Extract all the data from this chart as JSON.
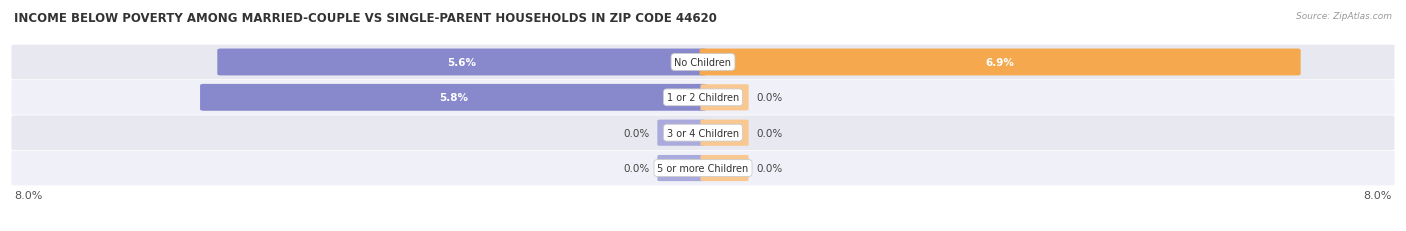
{
  "title": "INCOME BELOW POVERTY AMONG MARRIED-COUPLE VS SINGLE-PARENT HOUSEHOLDS IN ZIP CODE 44620",
  "source": "Source: ZipAtlas.com",
  "categories": [
    "No Children",
    "1 or 2 Children",
    "3 or 4 Children",
    "5 or more Children"
  ],
  "married_values": [
    5.6,
    5.8,
    0.0,
    0.0
  ],
  "single_values": [
    6.9,
    0.0,
    0.0,
    0.0
  ],
  "married_color": "#8888cc",
  "single_color": "#f5a84e",
  "married_stub_color": "#aaaadd",
  "single_stub_color": "#f8c890",
  "row_bg_odd": "#e8e8f0",
  "row_bg_even": "#f0f0f8",
  "xlim_left": -8.0,
  "xlim_right": 8.0,
  "stub_size": 0.5,
  "title_fontsize": 8.5,
  "label_fontsize": 7.0,
  "value_fontsize": 7.5,
  "tick_fontsize": 8,
  "legend_fontsize": 8
}
